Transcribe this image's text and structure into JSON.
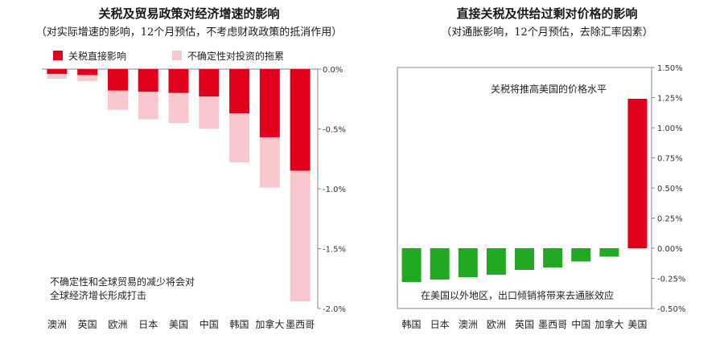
{
  "chart_data": [
    {
      "type": "bar",
      "stacked": true,
      "title": "关税及贸易政策对经济增速的影响",
      "subtitle": "（对实际增速的影响，12个月预估，不考虑财政政策的抵消作用）",
      "categories": [
        "澳洲",
        "英国",
        "欧洲",
        "日本",
        "美国",
        "中国",
        "韩国",
        "加拿大",
        "墨西哥"
      ],
      "series": [
        {
          "name": "关税直接影响",
          "color": "#e0001b",
          "values": [
            -0.04,
            -0.05,
            -0.18,
            -0.19,
            -0.2,
            -0.23,
            -0.37,
            -0.57,
            -0.85
          ]
        },
        {
          "name": "不确定性对投资的拖累",
          "color": "#f9c8cf",
          "values": [
            -0.04,
            -0.05,
            -0.16,
            -0.23,
            -0.25,
            -0.27,
            -0.41,
            -0.42,
            -1.09
          ]
        }
      ],
      "ylim": [
        -2.0,
        0.0
      ],
      "yticks": [
        0.0,
        -0.5,
        -1.0,
        -1.5,
        -2.0
      ],
      "ytick_labels": [
        "0.0%",
        "-0.5%",
        "-1.0%",
        "-1.5%",
        "-2.0%"
      ],
      "y_axis_side": "right",
      "legend_position": "top",
      "annotation": [
        "不确定性和全球贸易的减少将会对",
        "全球经济增长形成打击"
      ]
    },
    {
      "type": "bar",
      "title": "直接关税及供给过剩对价格的影响",
      "subtitle": "（对通胀影响，12个月预估，去除汇率因素）",
      "categories": [
        "韩国",
        "日本",
        "澳洲",
        "欧洲",
        "英国",
        "墨西哥",
        "中国",
        "加拿大",
        "美国"
      ],
      "values": [
        -0.28,
        -0.26,
        -0.24,
        -0.22,
        -0.18,
        -0.16,
        -0.11,
        -0.07,
        1.24
      ],
      "colors": {
        "negative": "#22a822",
        "positive": "#e0001b"
      },
      "ylim": [
        -0.5,
        1.5
      ],
      "yticks": [
        1.5,
        1.25,
        1.0,
        0.75,
        0.5,
        0.25,
        0.0,
        -0.25,
        -0.5
      ],
      "ytick_labels": [
        "1.50%",
        "1.25%",
        "1.00%",
        "0.75%",
        "0.50%",
        "0.25%",
        "0.00%",
        "-0.25%",
        "-0.50%"
      ],
      "y_axis_side": "right",
      "annotations": [
        "关税将推高美国的价格水平",
        "在美国以外地区，出口倾销将带来去通胀效应"
      ]
    }
  ]
}
